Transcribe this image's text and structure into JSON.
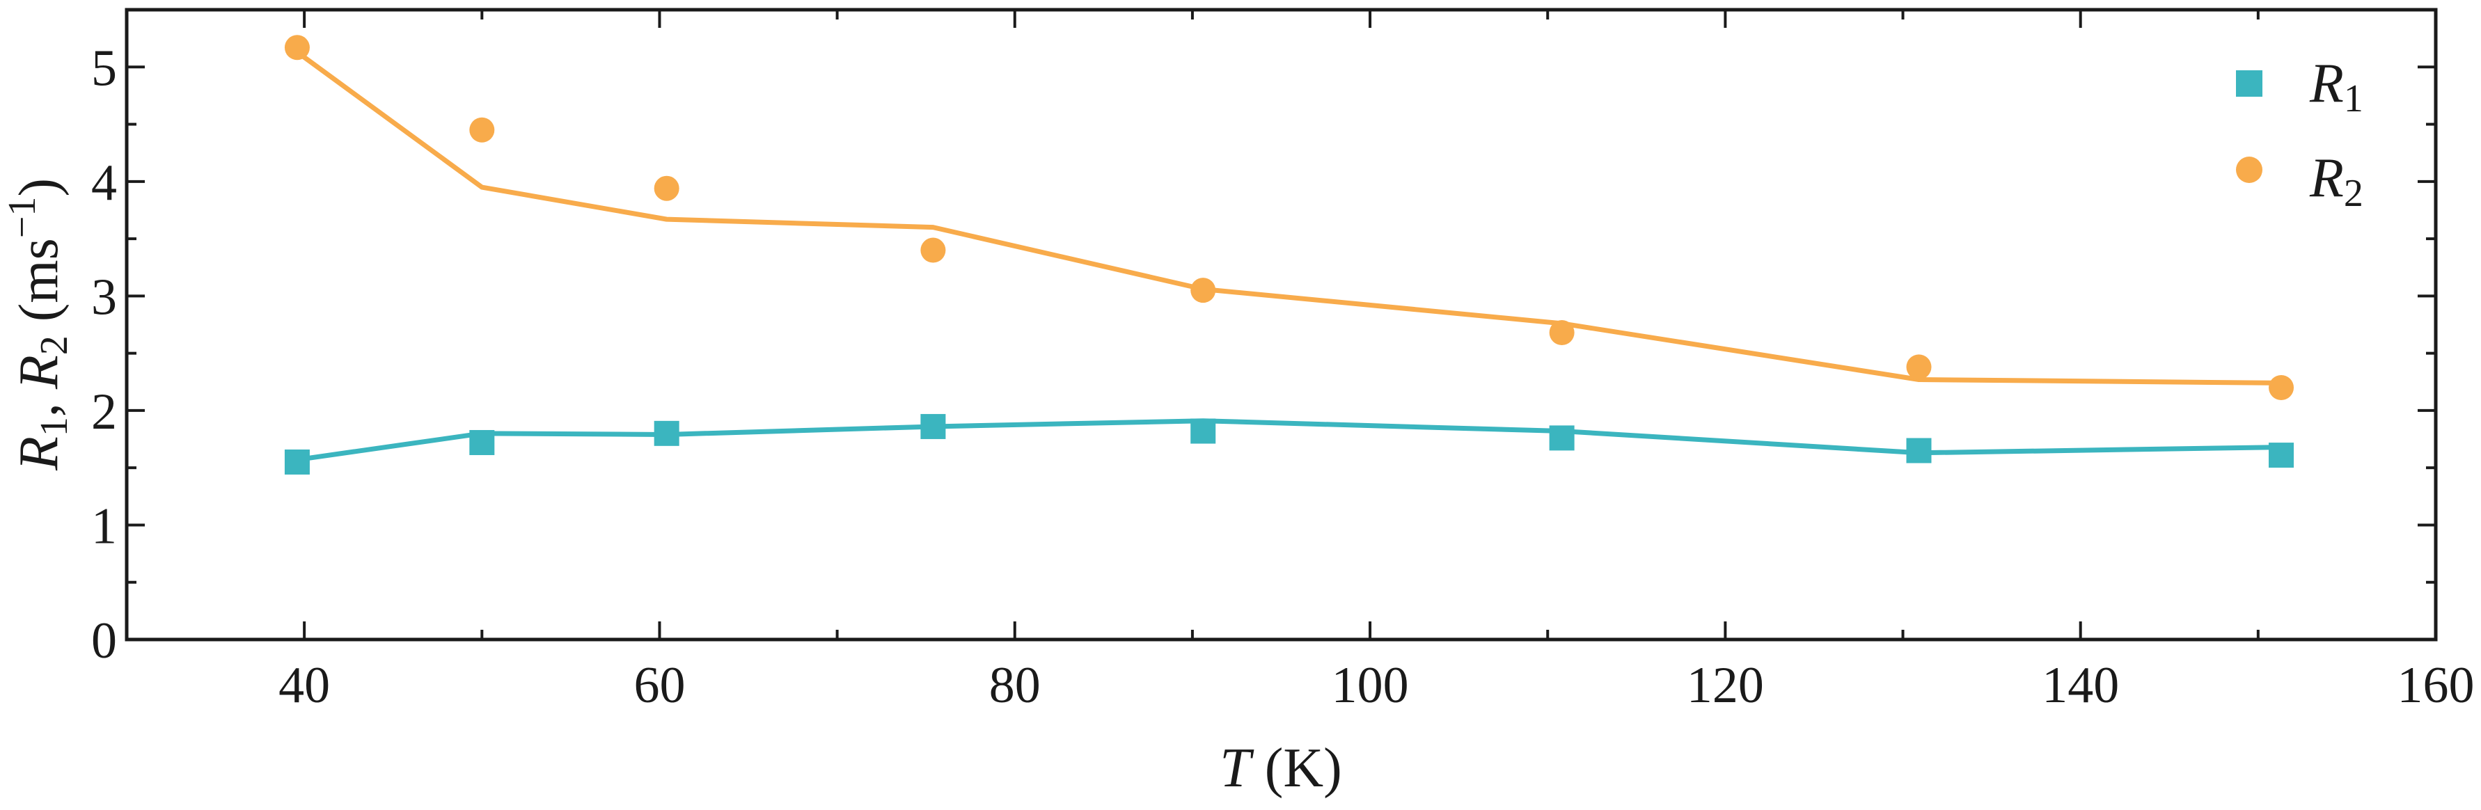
{
  "chart_data": {
    "type": "scatter",
    "xlabel_var": "T",
    "xlabel_unit": " (K)",
    "ylabel_prefix": "R",
    "ylabel_sub1": "1",
    "ylabel_sep": ", ",
    "ylabel_sub2": "2",
    "ylabel_unit": " (ms",
    "ylabel_sup": "−1",
    "ylabel_close": ")",
    "xlim": [
      30,
      160
    ],
    "ylim": [
      0,
      5.5
    ],
    "xticks": [
      40,
      60,
      80,
      100,
      120,
      140,
      160
    ],
    "yticks": [
      0,
      1,
      2,
      3,
      4,
      5
    ],
    "xminor": [
      50,
      70,
      90,
      110,
      130,
      150
    ],
    "yminor": [
      0.5,
      1.5,
      2.5,
      3.5,
      4.5
    ],
    "grid": false,
    "legend_position": "top-right",
    "series": [
      {
        "name_base": "R",
        "name_sub": "1",
        "marker": "square",
        "color": "#3bb5bf",
        "points": {
          "x": [
            39.6,
            50.0,
            60.4,
            75.4,
            90.6,
            110.8,
            130.9,
            151.3
          ],
          "y": [
            1.55,
            1.72,
            1.8,
            1.86,
            1.82,
            1.76,
            1.65,
            1.61
          ]
        },
        "fit": {
          "x": [
            39.6,
            50.0,
            60.4,
            75.4,
            90.6,
            110.8,
            130.9,
            151.3
          ],
          "y": [
            1.57,
            1.8,
            1.79,
            1.86,
            1.91,
            1.82,
            1.63,
            1.68
          ]
        }
      },
      {
        "name_base": "R",
        "name_sub": "2",
        "marker": "circle",
        "color": "#f8ab4b",
        "points": {
          "x": [
            39.6,
            50.0,
            60.4,
            75.4,
            90.6,
            110.8,
            130.9,
            151.3
          ],
          "y": [
            5.17,
            4.45,
            3.94,
            3.4,
            3.05,
            2.68,
            2.38,
            2.2
          ]
        },
        "fit": {
          "x": [
            39.6,
            50.0,
            60.4,
            75.4,
            90.6,
            110.8,
            130.9,
            151.3
          ],
          "y": [
            5.13,
            3.95,
            3.67,
            3.6,
            3.06,
            2.76,
            2.27,
            2.24
          ]
        }
      }
    ]
  }
}
